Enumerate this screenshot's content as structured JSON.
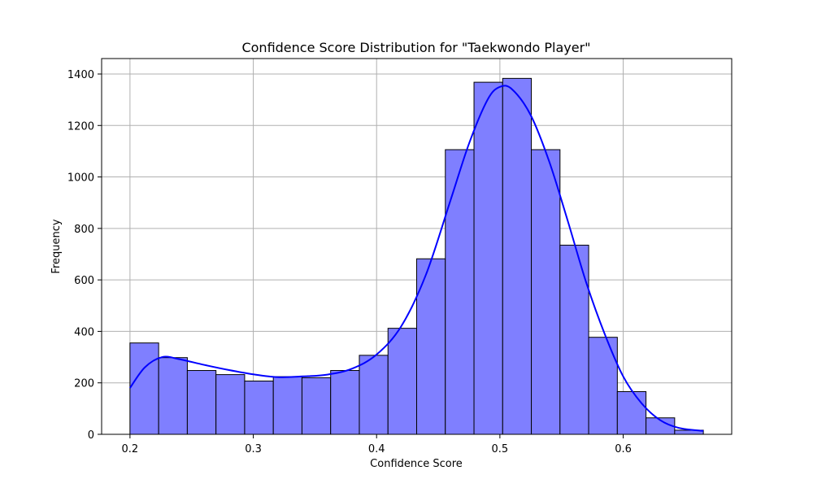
{
  "chart_data": {
    "type": "bar",
    "title": "Confidence Score Distribution for \"Taekwondo Player\"",
    "xlabel": "Confidence Score",
    "ylabel": "Frequency",
    "xlim": [
      0.177,
      0.688
    ],
    "ylim": [
      0,
      1460
    ],
    "x_ticks": [
      0.2,
      0.3,
      0.4,
      0.5,
      0.6
    ],
    "x_tick_labels": [
      "0.2",
      "0.3",
      "0.4",
      "0.5",
      "0.6"
    ],
    "y_ticks": [
      0,
      200,
      400,
      600,
      800,
      1000,
      1200,
      1400
    ],
    "y_tick_labels": [
      "0",
      "200",
      "400",
      "600",
      "800",
      "1000",
      "1200",
      "1400"
    ],
    "grid": true,
    "bar_fill": "#7f7fff",
    "bar_edge": "#000000",
    "kde_color": "#0000ff",
    "bins": {
      "start": 0.2,
      "width": 0.02325,
      "counts": [
        355,
        298,
        248,
        232,
        207,
        224,
        220,
        248,
        307,
        412,
        682,
        1106,
        1368,
        1383,
        1106,
        735,
        377,
        166,
        64,
        16
      ]
    },
    "kde": {
      "x": [
        0.2,
        0.212,
        0.226,
        0.24,
        0.26,
        0.28,
        0.3,
        0.32,
        0.34,
        0.36,
        0.38,
        0.4,
        0.42,
        0.44,
        0.46,
        0.475,
        0.49,
        0.5,
        0.51,
        0.525,
        0.54,
        0.555,
        0.57,
        0.585,
        0.6,
        0.615,
        0.63,
        0.645,
        0.665
      ],
      "y": [
        180,
        260,
        300,
        292,
        270,
        250,
        233,
        222,
        225,
        232,
        255,
        310,
        420,
        620,
        910,
        1130,
        1300,
        1350,
        1340,
        1240,
        1060,
        830,
        590,
        390,
        225,
        120,
        55,
        25,
        13
      ]
    }
  }
}
